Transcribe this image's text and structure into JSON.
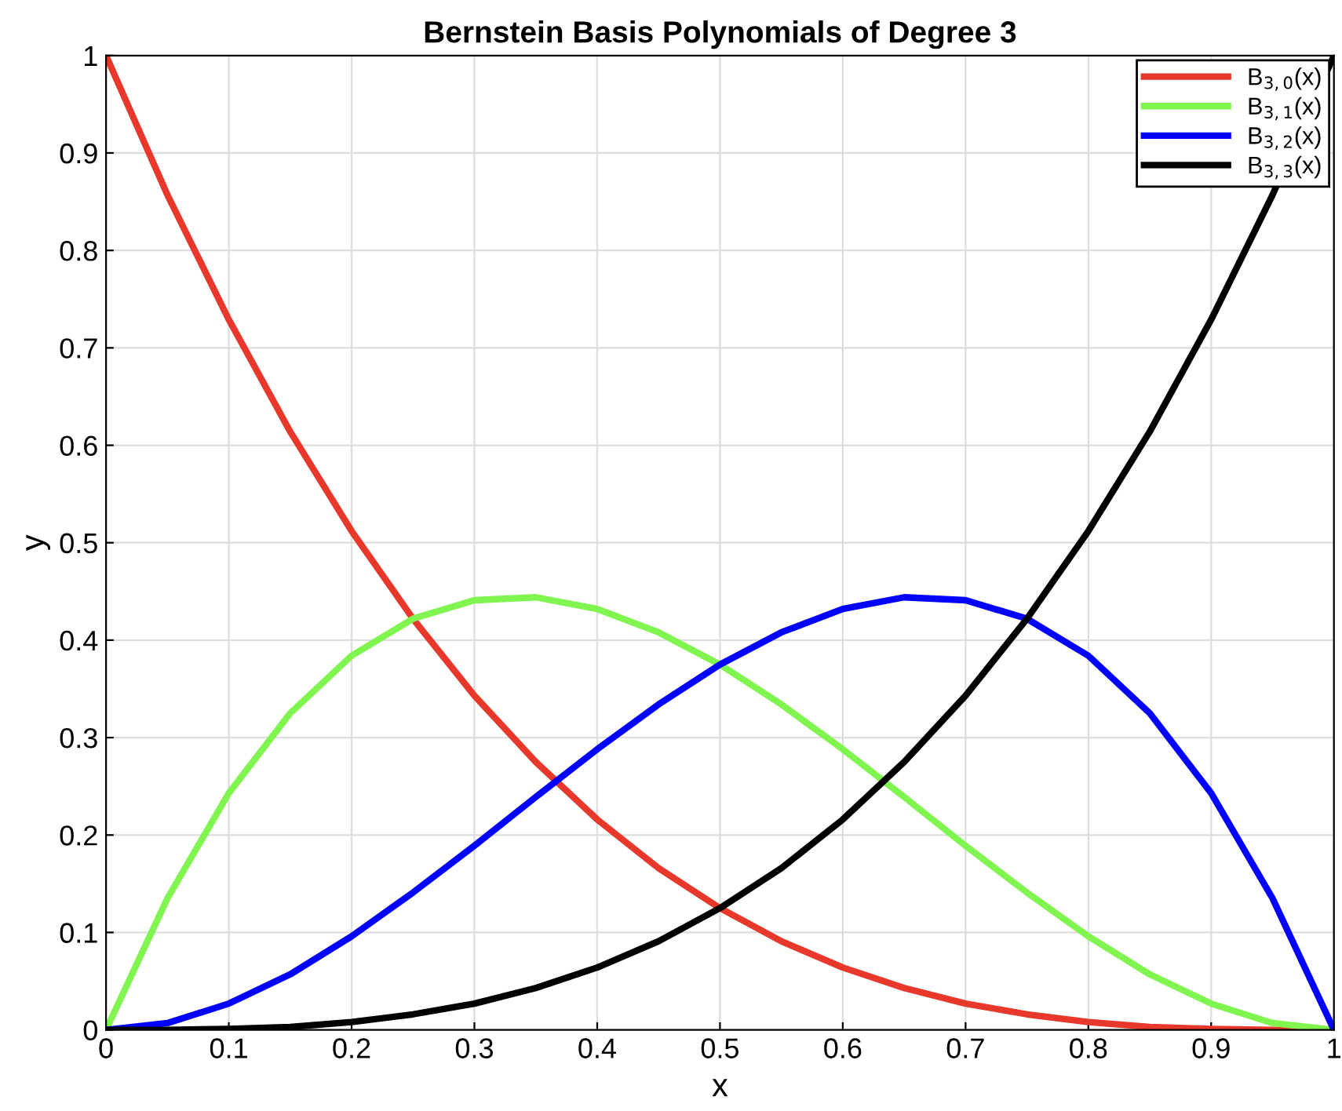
{
  "chart_data": {
    "type": "line",
    "title": "Bernstein Basis Polynomials of Degree 3",
    "xlabel": "x",
    "ylabel": "y",
    "x": [
      0,
      0.05,
      0.1,
      0.15,
      0.2,
      0.25,
      0.3,
      0.35,
      0.4,
      0.45,
      0.5,
      0.55,
      0.6,
      0.65,
      0.7,
      0.75,
      0.8,
      0.85,
      0.9,
      0.95,
      1
    ],
    "series": [
      {
        "name": "B$_{3,0}$(x)",
        "color": "#e8382b",
        "values": [
          1,
          0.857,
          0.729,
          0.614,
          0.512,
          0.422,
          0.343,
          0.275,
          0.216,
          0.166,
          0.125,
          0.091,
          0.064,
          0.043,
          0.027,
          0.016,
          0.008,
          0.003,
          0.001,
          0.0,
          0
        ]
      },
      {
        "name": "B$_{3,1}$(x)",
        "color": "#80f550",
        "values": [
          0,
          0.135,
          0.243,
          0.325,
          0.384,
          0.422,
          0.441,
          0.444,
          0.432,
          0.408,
          0.375,
          0.334,
          0.288,
          0.239,
          0.189,
          0.141,
          0.096,
          0.057,
          0.027,
          0.007,
          0
        ]
      },
      {
        "name": "B$_{3,2}$(x)",
        "color": "#0000ff",
        "values": [
          0,
          0.007,
          0.027,
          0.057,
          0.096,
          0.141,
          0.189,
          0.239,
          0.288,
          0.334,
          0.375,
          0.408,
          0.432,
          0.444,
          0.441,
          0.422,
          0.384,
          0.325,
          0.243,
          0.135,
          0
        ]
      },
      {
        "name": "B$_{3,3}$(x)",
        "color": "#000000",
        "values": [
          0,
          0.0,
          0.001,
          0.003,
          0.008,
          0.016,
          0.027,
          0.043,
          0.064,
          0.091,
          0.125,
          0.166,
          0.216,
          0.275,
          0.343,
          0.422,
          0.512,
          0.614,
          0.729,
          0.857,
          1
        ]
      }
    ],
    "xlim": [
      0,
      1
    ],
    "ylim": [
      0,
      1
    ],
    "xticks": [
      0,
      0.1,
      0.2,
      0.3,
      0.4,
      0.5,
      0.6,
      0.7,
      0.8,
      0.9,
      1
    ],
    "yticks": [
      0,
      0.1,
      0.2,
      0.3,
      0.4,
      0.5,
      0.6,
      0.7,
      0.8,
      0.9,
      1
    ],
    "grid": true,
    "legend": "top right",
    "marker": "none",
    "line_style": "solid"
  }
}
